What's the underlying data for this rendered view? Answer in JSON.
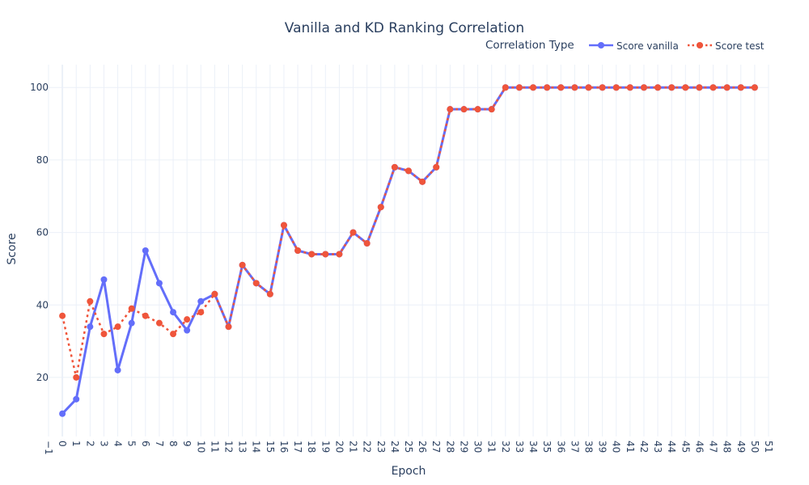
{
  "chart_data": {
    "type": "line",
    "title": "Vanilla and KD Ranking Correlation",
    "xlabel": "Epoch",
    "ylabel": "Score",
    "xlim": [
      -1,
      51
    ],
    "ylim": [
      3.7,
      106.3
    ],
    "x_ticks": [
      -1,
      0,
      1,
      2,
      3,
      4,
      5,
      6,
      7,
      8,
      9,
      10,
      11,
      12,
      13,
      14,
      15,
      16,
      17,
      18,
      19,
      20,
      21,
      22,
      23,
      24,
      25,
      26,
      27,
      28,
      29,
      30,
      31,
      32,
      33,
      34,
      35,
      36,
      37,
      38,
      39,
      40,
      41,
      42,
      43,
      44,
      45,
      46,
      47,
      48,
      49,
      50,
      51
    ],
    "y_ticks": [
      20,
      40,
      60,
      80,
      100
    ],
    "grid": true,
    "legend": {
      "title": "Correlation Type",
      "placement": "top-right"
    },
    "x": [
      0,
      1,
      2,
      3,
      4,
      5,
      6,
      7,
      8,
      9,
      10,
      11,
      12,
      13,
      14,
      15,
      16,
      17,
      18,
      19,
      20,
      21,
      22,
      23,
      24,
      25,
      26,
      27,
      28,
      29,
      30,
      31,
      32,
      33,
      34,
      35,
      36,
      37,
      38,
      39,
      40,
      41,
      42,
      43,
      44,
      45,
      46,
      47,
      48,
      49,
      50
    ],
    "series": [
      {
        "name": "Score vanilla",
        "color": "#636efa",
        "dash": "solid",
        "values": [
          10,
          14,
          34,
          47,
          22,
          35,
          55,
          46,
          38,
          33,
          41,
          43,
          34,
          51,
          46,
          43,
          62,
          55,
          54,
          54,
          54,
          60,
          57,
          67,
          78,
          77,
          74,
          78,
          94,
          94,
          94,
          94,
          100,
          100,
          100,
          100,
          100,
          100,
          100,
          100,
          100,
          100,
          100,
          100,
          100,
          100,
          100,
          100,
          100,
          100,
          100
        ]
      },
      {
        "name": "Score test",
        "color": "#ef553b",
        "dash": "dot",
        "values": [
          37,
          20,
          41,
          32,
          34,
          39,
          37,
          35,
          32,
          36,
          38,
          43,
          34,
          51,
          46,
          43,
          62,
          55,
          54,
          54,
          54,
          60,
          57,
          67,
          78,
          77,
          74,
          78,
          94,
          94,
          94,
          94,
          100,
          100,
          100,
          100,
          100,
          100,
          100,
          100,
          100,
          100,
          100,
          100,
          100,
          100,
          100,
          100,
          100,
          100,
          100
        ]
      }
    ]
  }
}
